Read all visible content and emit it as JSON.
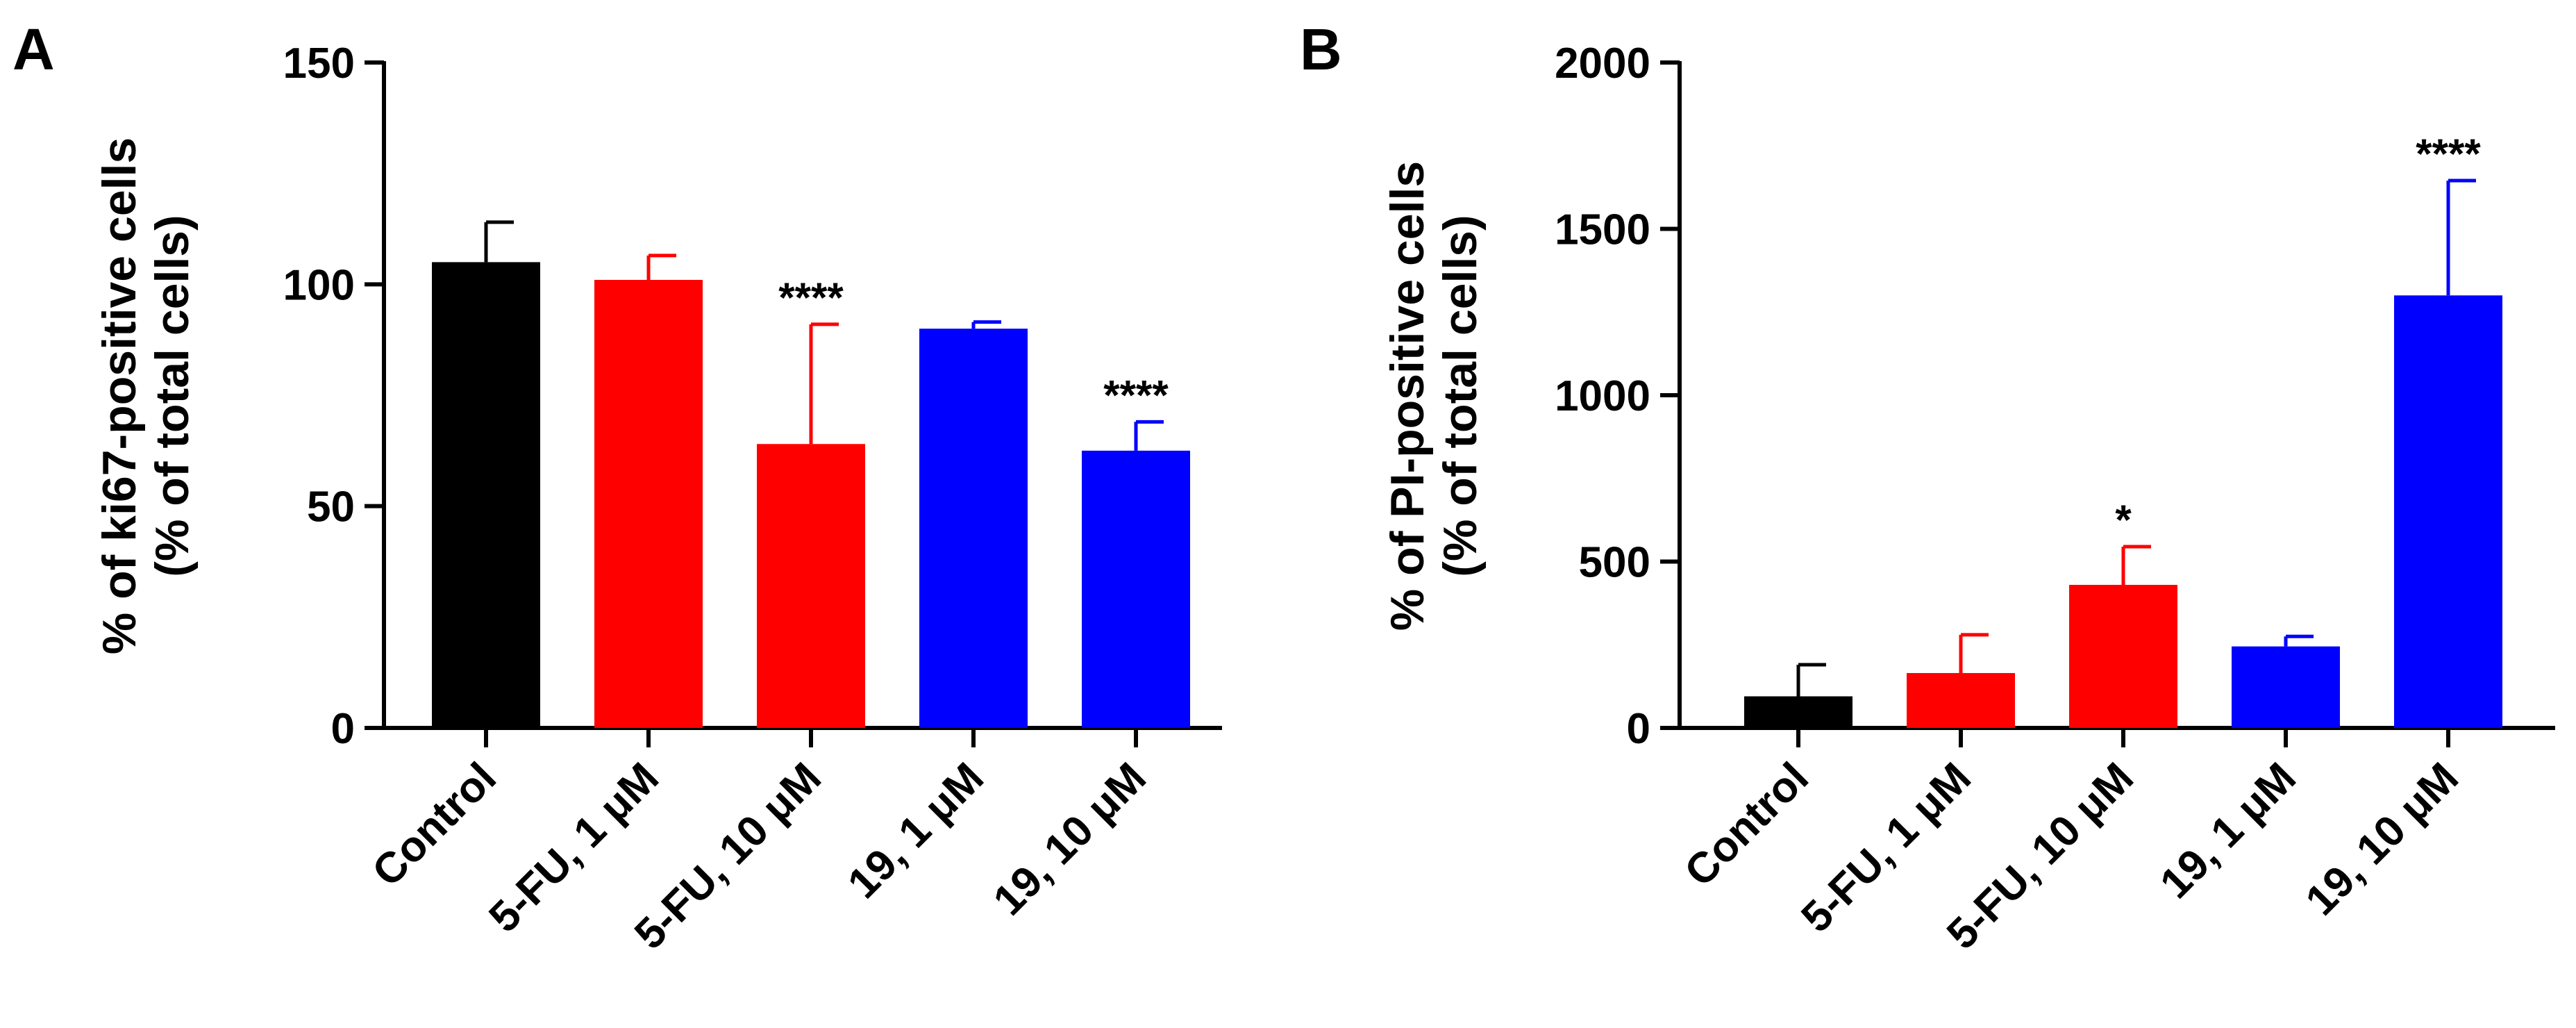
{
  "figure": {
    "panels": [
      {
        "panel_label": "A",
        "ylabel_line1": "% of ki67-positive cells",
        "ylabel_line2": "(% of total cells)"
      },
      {
        "panel_label": "B",
        "ylabel_line1": "% of PI-positive cells",
        "ylabel_line2": "(% of total cells)"
      }
    ]
  },
  "chart_data": [
    {
      "type": "bar",
      "panel": "A",
      "title": "",
      "xlabel": "",
      "ylabel": "% of ki67-positive cells (% of total cells)",
      "categories": [
        "Control",
        "5-FU, 1 μM",
        "5-FU, 10 μM",
        "19, 1 μM",
        "19, 10 μM"
      ],
      "values": [
        105,
        101,
        64,
        90,
        62.5
      ],
      "error_upper": [
        9,
        5.5,
        27,
        1.5,
        6.5
      ],
      "significance": [
        "",
        "",
        "****",
        "",
        "****"
      ],
      "colors": [
        "#000000",
        "#ff0000",
        "#ff0000",
        "#0000ff",
        "#0000ff"
      ],
      "ylim": [
        0,
        150
      ],
      "yticks": [
        0,
        50,
        100,
        150
      ],
      "ytick_labels": [
        "0",
        "50",
        "100",
        "150"
      ],
      "grid": false,
      "legend": "none"
    },
    {
      "type": "bar",
      "panel": "B",
      "title": "",
      "xlabel": "",
      "ylabel": "% of PI-positive cells (% of total cells)",
      "categories": [
        "Control",
        "5-FU, 1 μM",
        "5-FU, 10 μM",
        "19, 1 μM",
        "19, 10 μM"
      ],
      "values": [
        95,
        165,
        430,
        245,
        1300
      ],
      "error_upper": [
        95,
        115,
        115,
        30,
        345
      ],
      "significance": [
        "",
        "",
        "*",
        "",
        "****"
      ],
      "colors": [
        "#000000",
        "#ff0000",
        "#ff0000",
        "#0000ff",
        "#0000ff"
      ],
      "ylim": [
        0,
        2000
      ],
      "yticks": [
        0,
        500,
        1000,
        1500,
        2000
      ],
      "ytick_labels": [
        "0",
        "500",
        "1000",
        "1500",
        "2000"
      ],
      "grid": false,
      "legend": "none"
    }
  ]
}
